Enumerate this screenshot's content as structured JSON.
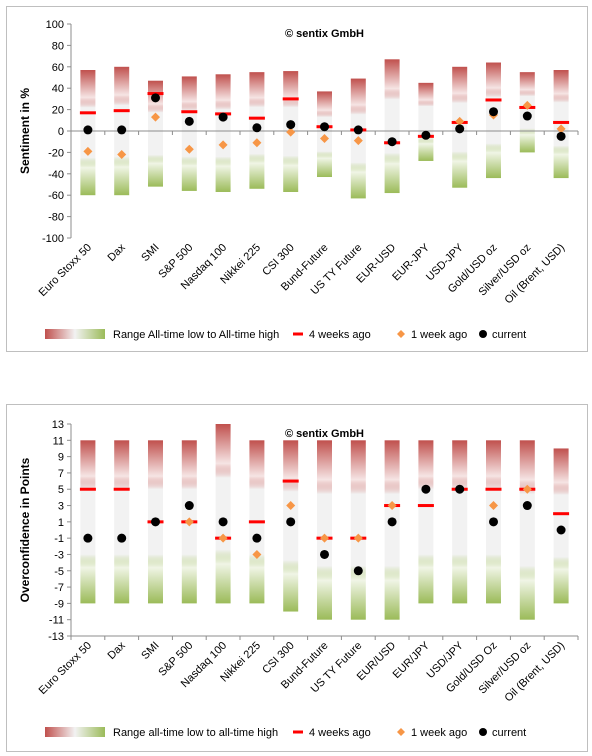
{
  "colors": {
    "bar_bottom": "#9bbb59",
    "bar_mid": "#f2f2f2",
    "bar_top": "#c0504d",
    "four_weeks": "#ff0000",
    "one_week": "#f79646",
    "current": "#000000"
  },
  "chart_data": [
    {
      "type": "range-bar-with-markers",
      "ylabel": "Sentiment in %",
      "watermark": "© sentix GmbH",
      "ylim": [
        -100,
        100
      ],
      "yticks": [
        -100,
        -80,
        -60,
        -40,
        -20,
        0,
        20,
        40,
        60,
        80,
        100
      ],
      "grid": false,
      "legend_position": "bottom",
      "legend": {
        "range": "Range All-time low to All-time high",
        "four_weeks": "4 weeks ago",
        "one_week": "1 week ago",
        "current": "current"
      },
      "categories": [
        "Euro Stoxx 50",
        "Dax",
        "SMI",
        "S&P 500",
        "Nasdaq 100",
        "Nikkei 225",
        "CSI 300",
        "Bund-Future",
        "US TY Future",
        "EUR-USD",
        "EUR-JPY",
        "USD-JPY",
        "Gold/USD oz",
        "Silver/USD oz",
        "Oil (Brent, USD)"
      ],
      "range_low": [
        -60,
        -60,
        -52,
        -56,
        -57,
        -54,
        -57,
        -43,
        -63,
        -58,
        -28,
        -53,
        -44,
        -20,
        -44
      ],
      "range_high": [
        57,
        60,
        47,
        51,
        53,
        55,
        56,
        37,
        49,
        67,
        45,
        60,
        64,
        55,
        57
      ],
      "four_weeks_ago": [
        17,
        19,
        35,
        18,
        16,
        12,
        30,
        4,
        1,
        -11,
        -5,
        8,
        29,
        22,
        8
      ],
      "one_week_ago": [
        -19,
        -22,
        13,
        -17,
        -13,
        -11,
        -1,
        -7,
        -9,
        -10,
        -4,
        9,
        15,
        24,
        2
      ],
      "current": [
        1,
        1,
        31,
        9,
        13,
        3,
        6,
        4,
        1,
        -10,
        -4,
        2,
        18,
        14,
        -5
      ]
    },
    {
      "type": "range-bar-with-markers",
      "ylabel": "Overconfidence in Points",
      "watermark": "© sentix GmbH",
      "ylim": [
        -13,
        13
      ],
      "yticks": [
        -13,
        -11,
        -9,
        -7,
        -5,
        -3,
        -1,
        1,
        3,
        5,
        7,
        9,
        11,
        13
      ],
      "grid": false,
      "legend_position": "bottom",
      "legend": {
        "range": "Range all-time low to all-time high",
        "four_weeks": "4 weeks ago",
        "one_week": "1 week ago",
        "current": "current"
      },
      "categories": [
        "Euro Stoxx 50",
        "Dax",
        "SMI",
        "S&P 500",
        "Nasdaq 100",
        "Nikkei 225",
        "CSI 300",
        "Bund-Future",
        "US TY Future",
        "EUR/USD",
        "EUR/JPY",
        "USD/JPY",
        "Gold/USD Oz",
        "Silver/USD oz",
        "Oil (Brent, USD)"
      ],
      "range_low": [
        -9,
        -9,
        -9,
        -9,
        -9,
        -9,
        -10,
        -11,
        -11,
        -11,
        -9,
        -9,
        -9,
        -11,
        -9
      ],
      "range_high": [
        11,
        11,
        11,
        11,
        13,
        11,
        11,
        11,
        11,
        11,
        11,
        11,
        11,
        11,
        10
      ],
      "four_weeks_ago": [
        5,
        5,
        1,
        1,
        -1,
        1,
        6,
        -1,
        -1,
        3,
        3,
        5,
        5,
        5,
        2
      ],
      "one_week_ago": [
        null,
        null,
        null,
        1,
        -1,
        -3,
        3,
        -1,
        -1,
        3,
        null,
        null,
        3,
        5,
        null
      ],
      "current": [
        -1,
        -1,
        1,
        3,
        1,
        -1,
        1,
        -3,
        -5,
        1,
        5,
        5,
        1,
        3,
        0
      ]
    }
  ]
}
